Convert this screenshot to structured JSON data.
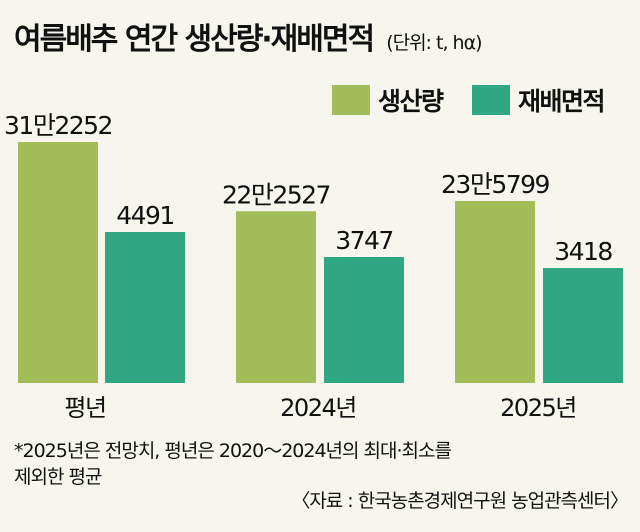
{
  "header": {
    "title": "여름배추 연간 생산량·재배면적",
    "unit": "(단위: t, hα)"
  },
  "chart_data": {
    "type": "bar",
    "categories": [
      "평년",
      "2024년",
      "2025년"
    ],
    "series": [
      {
        "name": "생산량",
        "color": "#a3bc5a",
        "values": [
          312252,
          222527,
          235799
        ],
        "labels": [
          "31만2252",
          "22만2527",
          "23만5799"
        ]
      },
      {
        "name": "재배면적",
        "color": "#2fa782",
        "values": [
          4491,
          3747,
          3418
        ],
        "labels": [
          "4491",
          "3747",
          "3418"
        ]
      }
    ],
    "legend": "top-right",
    "grid": false
  },
  "footer": {
    "note_line1": "*2025년은 전망치, 평년은 2020～2024년의 최대·최소를",
    "note_line2": "제외한 평균",
    "source": "〈자료 : 한국농촌경제연구원 농업관측센터〉"
  }
}
